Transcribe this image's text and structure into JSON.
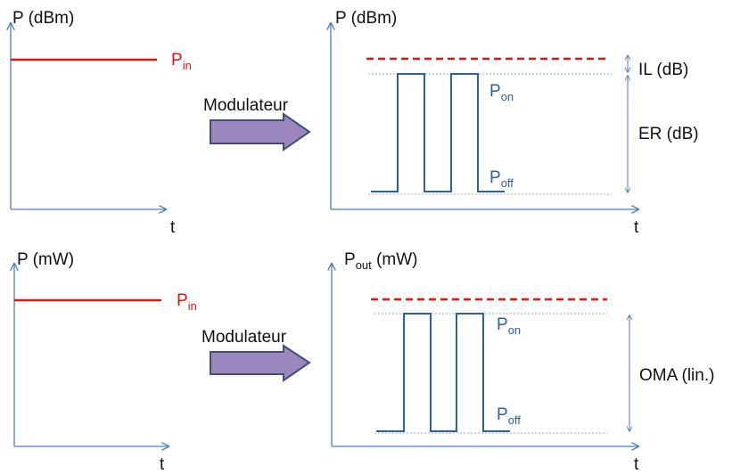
{
  "colors": {
    "axis": "#4a7fc4",
    "input_level": "#e8120c",
    "signal": "#2e5f9e",
    "guide": "#8fb0dc",
    "arrow_fill": "#9b86c0",
    "arrow_stroke": "#3e4f79"
  },
  "top_row": {
    "input_axis_y": "P (dBm)",
    "input_axis_x": "t",
    "input_label_main": "P",
    "input_label_sub": "in",
    "arrow_label": "Modulateur",
    "output_axis_y": "P (dBm)",
    "output_axis_x": "t",
    "pon_main": "P",
    "pon_sub": "on",
    "poff_main": "P",
    "poff_sub": "off",
    "il_label": "IL (dB)",
    "er_label": "ER (dB)"
  },
  "bottom_row": {
    "input_axis_y": "P (mW)",
    "input_axis_x": "t",
    "input_label_main": "P",
    "input_label_sub": "in",
    "arrow_label": "Modulateur",
    "output_axis_y_main": "P",
    "output_axis_y_sub": "out",
    "output_axis_y_unit": " (mW)",
    "output_axis_x": "t",
    "pon_main": "P",
    "pon_sub": "on",
    "poff_main": "P",
    "poff_sub": "off",
    "oma_label": "OMA (lin.)"
  }
}
